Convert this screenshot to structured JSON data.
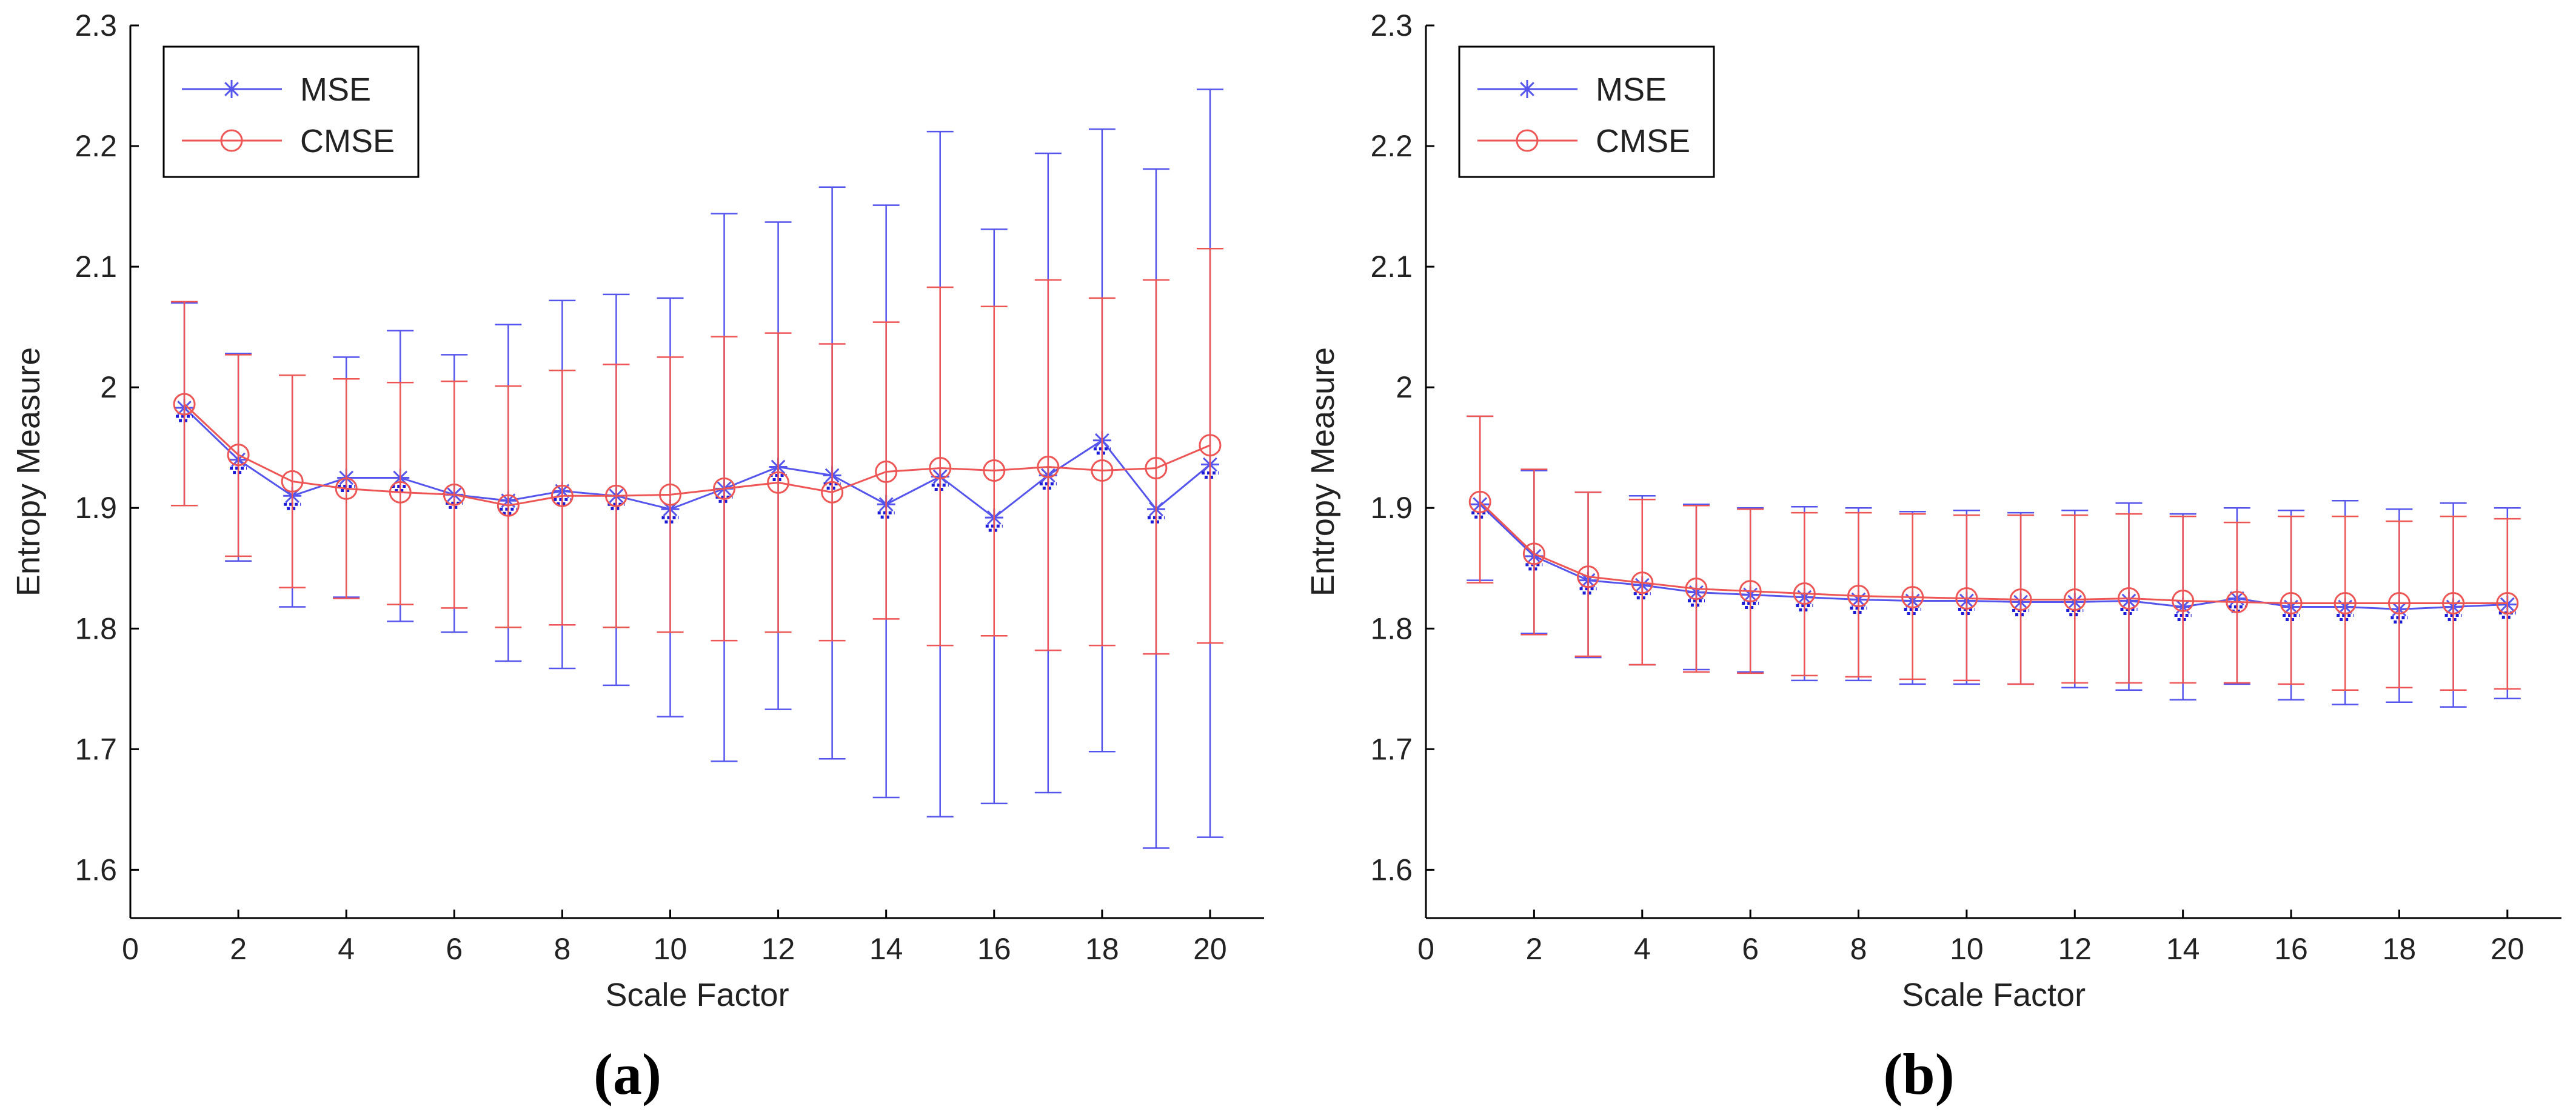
{
  "chart_data": [
    {
      "type": "line",
      "panel_label": "(a)",
      "xlabel": "Scale Factor",
      "ylabel": "Entropy Measure",
      "xlim": [
        0,
        21
      ],
      "ylim": [
        1.56,
        2.3
      ],
      "xticks": [
        0,
        2,
        4,
        6,
        8,
        10,
        12,
        14,
        16,
        18,
        20
      ],
      "yticks": [
        1.6,
        1.7,
        1.8,
        1.9,
        2.0,
        2.1,
        2.2,
        2.3
      ],
      "ytick_labels": [
        "1.6",
        "1.7",
        "1.8",
        "1.9",
        "2",
        "2.1",
        "2.2",
        "2.3"
      ],
      "legend": {
        "position": "top-left",
        "entries": [
          "MSE",
          "CMSE"
        ]
      },
      "grid": false,
      "x": [
        1,
        2,
        3,
        4,
        5,
        6,
        7,
        8,
        9,
        10,
        11,
        12,
        13,
        14,
        15,
        16,
        17,
        18,
        19,
        20
      ],
      "series": [
        {
          "name": "MSE",
          "color": "#5555ee",
          "marker": "star",
          "values": [
            1.983,
            1.94,
            1.91,
            1.925,
            1.925,
            1.911,
            1.906,
            1.914,
            1.91,
            1.899,
            1.916,
            1.934,
            1.927,
            1.903,
            1.926,
            1.892,
            1.927,
            1.956,
            1.899,
            1.936
          ],
          "error_upper": [
            2.07,
            2.028,
            2.01,
            2.025,
            2.047,
            2.027,
            2.052,
            2.072,
            2.077,
            2.074,
            2.144,
            2.137,
            2.166,
            2.151,
            2.212,
            2.131,
            2.194,
            2.214,
            2.181,
            2.247
          ],
          "error_lower": [
            1.902,
            1.856,
            1.818,
            1.826,
            1.806,
            1.797,
            1.773,
            1.767,
            1.753,
            1.727,
            1.69,
            1.733,
            1.692,
            1.66,
            1.644,
            1.655,
            1.664,
            1.698,
            1.618,
            1.627
          ]
        },
        {
          "name": "CMSE",
          "color": "#ee5555",
          "marker": "circle",
          "values": [
            1.986,
            1.944,
            1.922,
            1.916,
            1.913,
            1.911,
            1.902,
            1.91,
            1.91,
            1.911,
            1.916,
            1.921,
            1.913,
            1.93,
            1.933,
            1.931,
            1.934,
            1.931,
            1.933,
            1.952
          ],
          "error_upper": [
            2.071,
            2.027,
            2.01,
            2.007,
            2.004,
            2.005,
            2.001,
            2.014,
            2.019,
            2.025,
            2.042,
            2.045,
            2.036,
            2.054,
            2.083,
            2.067,
            2.089,
            2.074,
            2.089,
            2.115
          ],
          "error_lower": [
            1.902,
            1.86,
            1.834,
            1.825,
            1.82,
            1.817,
            1.801,
            1.803,
            1.801,
            1.797,
            1.79,
            1.797,
            1.79,
            1.808,
            1.786,
            1.794,
            1.782,
            1.786,
            1.779,
            1.788
          ]
        }
      ]
    },
    {
      "type": "line",
      "panel_label": "(b)",
      "xlabel": "Scale Factor",
      "ylabel": "Entropy Measure",
      "xlim": [
        0,
        21
      ],
      "ylim": [
        1.56,
        2.3
      ],
      "xticks": [
        0,
        2,
        4,
        6,
        8,
        10,
        12,
        14,
        16,
        18,
        20
      ],
      "yticks": [
        1.6,
        1.7,
        1.8,
        1.9,
        2.0,
        2.1,
        2.2,
        2.3
      ],
      "ytick_labels": [
        "1.6",
        "1.7",
        "1.8",
        "1.9",
        "2",
        "2.1",
        "2.2",
        "2.3"
      ],
      "legend": {
        "position": "top-left",
        "entries": [
          "MSE",
          "CMSE"
        ]
      },
      "grid": false,
      "x": [
        1,
        2,
        3,
        4,
        5,
        6,
        7,
        8,
        9,
        10,
        11,
        12,
        13,
        14,
        15,
        16,
        17,
        18,
        19,
        20
      ],
      "series": [
        {
          "name": "MSE",
          "color": "#5555ee",
          "marker": "star",
          "values": [
            1.903,
            1.86,
            1.84,
            1.836,
            1.83,
            1.828,
            1.826,
            1.824,
            1.823,
            1.823,
            1.822,
            1.822,
            1.823,
            1.818,
            1.825,
            1.818,
            1.818,
            1.816,
            1.818,
            1.82
          ],
          "error_upper": [
            1.976,
            1.931,
            1.913,
            1.91,
            1.903,
            1.9,
            1.901,
            1.9,
            1.897,
            1.898,
            1.896,
            1.898,
            1.904,
            1.895,
            1.9,
            1.898,
            1.906,
            1.899,
            1.904,
            1.9
          ],
          "error_lower": [
            1.84,
            1.796,
            1.776,
            1.77,
            1.766,
            1.764,
            1.757,
            1.757,
            1.754,
            1.754,
            1.754,
            1.751,
            1.749,
            1.741,
            1.754,
            1.741,
            1.737,
            1.739,
            1.735,
            1.742
          ]
        },
        {
          "name": "CMSE",
          "color": "#ee5555",
          "marker": "circle",
          "values": [
            1.905,
            1.862,
            1.843,
            1.838,
            1.833,
            1.831,
            1.829,
            1.827,
            1.826,
            1.825,
            1.824,
            1.824,
            1.825,
            1.823,
            1.822,
            1.821,
            1.821,
            1.821,
            1.821,
            1.821
          ],
          "error_upper": [
            1.976,
            1.932,
            1.913,
            1.907,
            1.902,
            1.899,
            1.896,
            1.896,
            1.895,
            1.894,
            1.894,
            1.894,
            1.895,
            1.893,
            1.888,
            1.893,
            1.893,
            1.889,
            1.893,
            1.891
          ],
          "error_lower": [
            1.838,
            1.795,
            1.777,
            1.77,
            1.764,
            1.763,
            1.761,
            1.76,
            1.758,
            1.757,
            1.754,
            1.755,
            1.755,
            1.755,
            1.755,
            1.754,
            1.749,
            1.751,
            1.749,
            1.75
          ]
        }
      ]
    }
  ]
}
